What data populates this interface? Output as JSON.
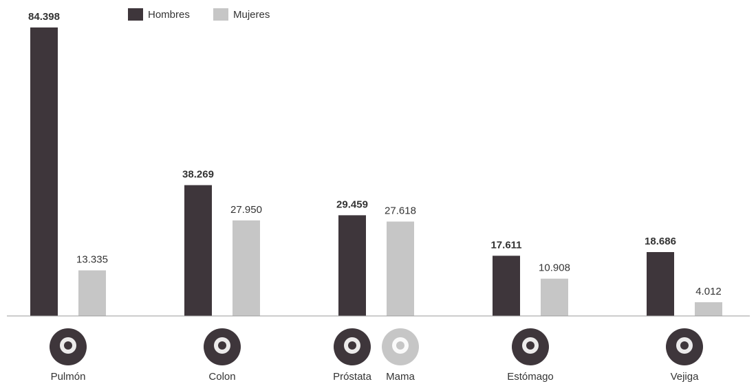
{
  "chart_data": {
    "type": "bar",
    "categories": [
      "Pulmón",
      "Colon",
      "Próstata",
      "Estómago",
      "Vejiga"
    ],
    "secondary_labels": [
      null,
      null,
      "Mama",
      null,
      null
    ],
    "series": [
      {
        "name": "Hombres",
        "color": "#3e363b",
        "values": [
          84398,
          38269,
          29459,
          17611,
          18686
        ],
        "value_labels": [
          "84.398",
          "38.269",
          "29.459",
          "17.611",
          "18.686"
        ]
      },
      {
        "name": "Mujeres",
        "color": "#c6c6c6",
        "values": [
          13335,
          27950,
          27618,
          10908,
          4012
        ],
        "value_labels": [
          "13.335",
          "27.950",
          "27.618",
          "10.908",
          "4.012"
        ]
      }
    ],
    "legend": "top-left"
  }
}
